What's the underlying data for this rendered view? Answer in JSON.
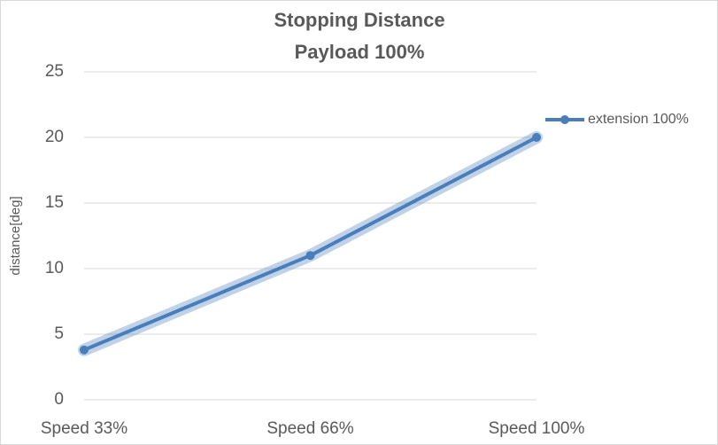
{
  "chart_data": {
    "type": "line",
    "title": "Stopping Distance",
    "subtitle": "Payload 100%",
    "y_label": "distance[deg]",
    "categories": [
      "Speed 33%",
      "Speed 66%",
      "Speed 100%"
    ],
    "series": [
      {
        "name": "extension 100%",
        "color": "#4a7ebb",
        "values": [
          3.8,
          11,
          20
        ]
      }
    ],
    "ylim": [
      0,
      25
    ],
    "yticks": [
      0,
      5,
      10,
      15,
      20,
      25
    ],
    "grid": true,
    "legend": "right"
  }
}
